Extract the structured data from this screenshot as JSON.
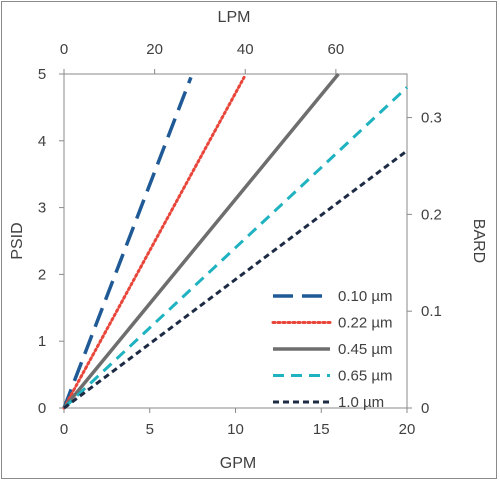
{
  "chart_data": {
    "type": "line",
    "title": "",
    "x_bottom": {
      "label": "GPM",
      "range": [
        0,
        20
      ],
      "ticks": [
        "0",
        "5",
        "10",
        "15",
        "20"
      ]
    },
    "x_top": {
      "label": "LPM",
      "range": [
        0,
        75.7
      ],
      "ticks": [
        "0",
        "20",
        "40",
        "60"
      ],
      "tick_values": [
        0,
        20,
        40,
        60
      ]
    },
    "y_left": {
      "label": "PSID",
      "range": [
        0,
        5
      ],
      "ticks": [
        "0",
        "1",
        "2",
        "3",
        "4",
        "5"
      ]
    },
    "y_right": {
      "label": "BARD",
      "range": [
        0,
        0.345
      ],
      "ticks": [
        "0",
        "0.1",
        "0.2",
        "0.3"
      ],
      "tick_values": [
        0,
        0.1,
        0.2,
        0.3
      ]
    },
    "grid": false,
    "legend_position": "bottom-right",
    "series": [
      {
        "name": "0.10 µm",
        "color": "#1f5a96",
        "dash": "long-dash",
        "x": [
          0,
          7.4
        ],
        "y": [
          0,
          4.95
        ]
      },
      {
        "name": "0.22 µm",
        "color": "#e8463a",
        "dash": "dot",
        "x": [
          0,
          10.5
        ],
        "y": [
          0,
          4.95
        ]
      },
      {
        "name": "0.45 µm",
        "color": "#6e6e6e",
        "dash": "solid",
        "x": [
          0,
          16.0
        ],
        "y": [
          0,
          5.0
        ]
      },
      {
        "name": "0.65 µm",
        "color": "#1fb2c0",
        "dash": "dash",
        "x": [
          0,
          20.0
        ],
        "y": [
          0,
          4.8
        ]
      },
      {
        "name": "1.0 µm",
        "color": "#1c2a44",
        "dash": "short-dash",
        "x": [
          0,
          20.0
        ],
        "y": [
          0,
          3.85
        ]
      }
    ]
  }
}
